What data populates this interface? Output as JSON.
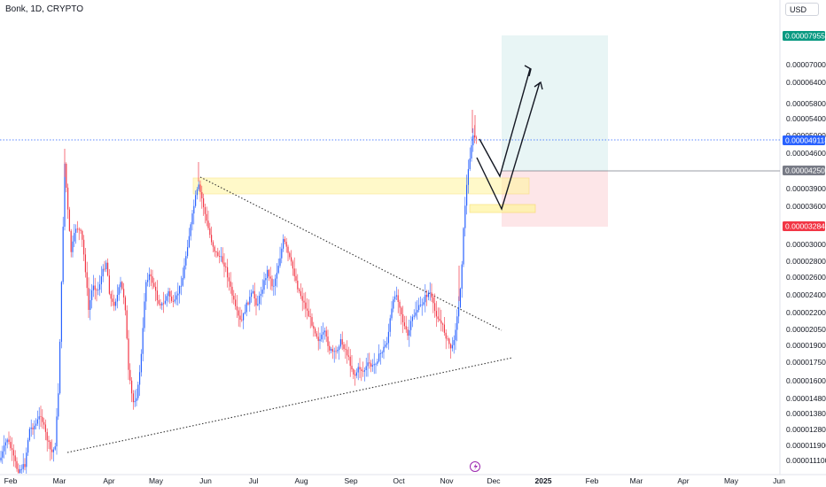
{
  "title": "Bonk, 1D, CRYPTO",
  "currency": "USD",
  "colors": {
    "up": "#2962ff",
    "down": "#f23645",
    "current_tag": "#2962ff",
    "target_tag": "#089981",
    "entry_tag": "#787b86",
    "stop_tag": "#f23645",
    "profit_zone": "#e0f2f1",
    "loss_zone": "#fde2e4",
    "supply_zone": "#fff59d"
  },
  "chart_data": {
    "type": "candlestick",
    "title": "Bonk, 1D, CRYPTO",
    "x_ticks": [
      "Feb",
      "Mar",
      "Apr",
      "May",
      "Jun",
      "Jul",
      "Aug",
      "Sep",
      "Oct",
      "Nov",
      "Dec",
      "2025",
      "Feb",
      "Mar",
      "Apr",
      "May",
      "Jun"
    ],
    "y_ticks": [
      "0.000070000",
      "0.000064000",
      "0.000058000",
      "0.000054000",
      "0.000050000",
      "0.000046000",
      "0.000039000",
      "0.000036000",
      "0.000030000",
      "0.000028000",
      "0.000026000",
      "0.000024000",
      "0.000022000",
      "0.000020500",
      "0.000019000",
      "0.000017500",
      "0.000016000",
      "0.000014800",
      "0.000013800",
      "0.000012800",
      "0.000011900",
      "0.000011100"
    ],
    "price_tags": {
      "target": "0.000079559",
      "current": "0.000049118",
      "entry": "0.000042502",
      "stop": "0.000032848"
    },
    "approx_close_by_month": [
      {
        "month": "Feb",
        "close": 1.15e-05
      },
      {
        "month": "Mar",
        "close": 3.2e-05
      },
      {
        "month": "Apr",
        "close": 1.6e-05
      },
      {
        "month": "May",
        "close": 2.4e-05
      },
      {
        "month": "Jun",
        "close": 3.6e-05
      },
      {
        "month": "Jul",
        "close": 2.6e-05
      },
      {
        "month": "Aug",
        "close": 1.9e-05
      },
      {
        "month": "Sep",
        "close": 1.75e-05
      },
      {
        "month": "Oct",
        "close": 2.2e-05
      },
      {
        "month": "Nov",
        "close": 4.9e-05
      }
    ],
    "annotations": [
      "descending trendline",
      "ascending trendline",
      "supply zones",
      "long position (target / entry / stop)",
      "projection arrows"
    ]
  }
}
